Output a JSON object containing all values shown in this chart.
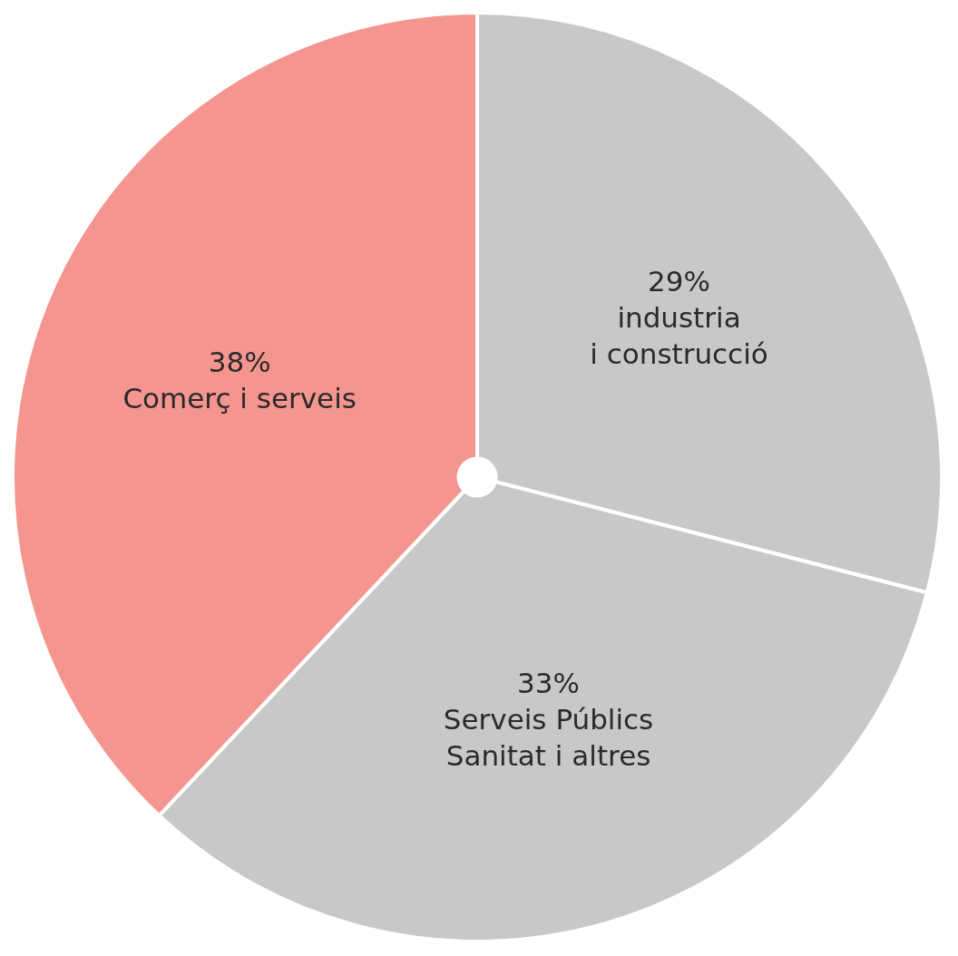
{
  "chart_data": {
    "type": "pie",
    "categories": [
      "industria\ni construcció",
      "Serveis Públics\nSanitat i altres",
      "Comerç i serveis"
    ],
    "values": [
      29,
      33,
      38
    ],
    "value_labels": [
      "29%",
      "33%",
      "38%"
    ],
    "colors": [
      "#c8c8c8",
      "#c8c8c8",
      "#f5958f"
    ],
    "legend": false
  }
}
